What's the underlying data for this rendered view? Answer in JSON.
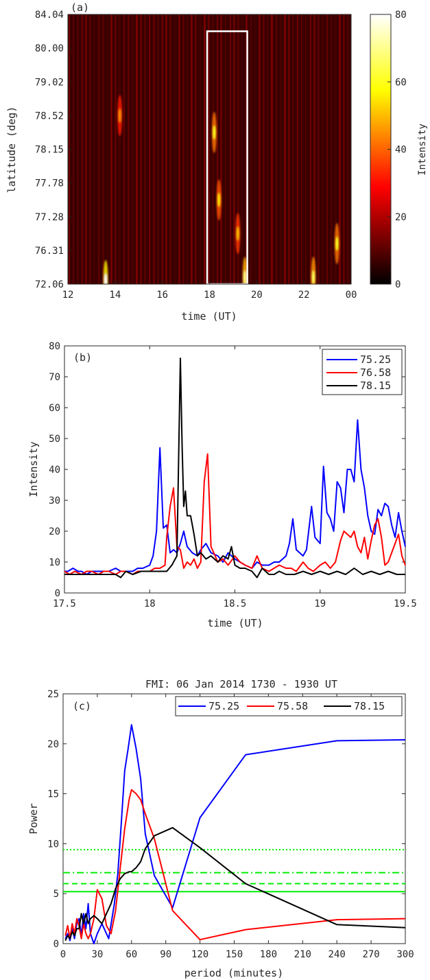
{
  "chart_data": [
    {
      "type": "heatmap",
      "panel_label": "(a)",
      "xlabel": "time (UT)",
      "ylabel": "latitude (deg)",
      "x_ticks": [
        "12",
        "14",
        "16",
        "18",
        "20",
        "22",
        "00"
      ],
      "x_range_hours": [
        12,
        24
      ],
      "y_ticks": [
        "72.06",
        "76.31",
        "77.28",
        "77.78",
        "78.15",
        "78.52",
        "79.02",
        "80.00",
        "84.04"
      ],
      "colorbar_label": "Intensity",
      "colorbar_ticks": [
        "0",
        "20",
        "40",
        "60",
        "80"
      ],
      "colorbar_range": [
        0,
        80
      ],
      "colormap": "hot",
      "highlight_box": {
        "x": [
          17.9,
          19.6
        ],
        "y_tick_index": [
          0,
          7.5
        ],
        "color": "#ffffff"
      },
      "features": [
        {
          "x": 13.6,
          "y_index": 0.1,
          "intensity": 80
        },
        {
          "x": 14.2,
          "y_index": 5.0,
          "intensity": 45
        },
        {
          "x": 18.2,
          "y_index": 4.5,
          "intensity": 60
        },
        {
          "x": 18.4,
          "y_index": 2.5,
          "intensity": 55
        },
        {
          "x": 19.2,
          "y_index": 1.5,
          "intensity": 50
        },
        {
          "x": 19.5,
          "y_index": 0.2,
          "intensity": 70
        },
        {
          "x": 22.4,
          "y_index": 0.2,
          "intensity": 65
        },
        {
          "x": 23.4,
          "y_index": 1.2,
          "intensity": 60
        }
      ]
    },
    {
      "type": "line",
      "panel_label": "(b)",
      "xlabel": "time (UT)",
      "ylabel": "Intensity",
      "x_ticks": [
        "17.5",
        "18",
        "18.5",
        "19",
        "19.5"
      ],
      "xlim": [
        17.5,
        19.5
      ],
      "y_ticks": [
        "0",
        "10",
        "20",
        "30",
        "40",
        "50",
        "60",
        "70",
        "80"
      ],
      "ylim": [
        0,
        80
      ],
      "legend_position": "top-right",
      "series": [
        {
          "name": "75.25",
          "color": "#0000ff",
          "x": [
            17.5,
            17.52,
            17.55,
            17.58,
            17.6,
            17.63,
            17.66,
            17.7,
            17.73,
            17.76,
            17.8,
            17.83,
            17.86,
            17.9,
            17.93,
            17.96,
            18.0,
            18.02,
            18.04,
            18.06,
            18.08,
            18.1,
            18.12,
            18.14,
            18.16,
            18.18,
            18.2,
            18.22,
            18.25,
            18.28,
            18.3,
            18.33,
            18.36,
            18.4,
            18.43,
            18.46,
            18.5,
            18.53,
            18.56,
            18.6,
            18.63,
            18.66,
            18.7,
            18.73,
            18.76,
            18.8,
            18.82,
            18.84,
            18.86,
            18.9,
            18.92,
            18.95,
            18.97,
            19.0,
            19.02,
            19.04,
            19.06,
            19.08,
            19.1,
            19.12,
            19.14,
            19.16,
            19.18,
            19.2,
            19.22,
            19.24,
            19.26,
            19.28,
            19.3,
            19.32,
            19.34,
            19.36,
            19.38,
            19.4,
            19.42,
            19.44,
            19.46,
            19.48,
            19.5
          ],
          "y": [
            7,
            7,
            8,
            7,
            7,
            6,
            7,
            7,
            7,
            7,
            8,
            7,
            7,
            7,
            8,
            8,
            9,
            12,
            20,
            47,
            21,
            22,
            13,
            14,
            13,
            16,
            20,
            15,
            13,
            12,
            14,
            16,
            13,
            12,
            10,
            13,
            11,
            10,
            9,
            8,
            10,
            9,
            9,
            10,
            10,
            12,
            16,
            24,
            14,
            12,
            14,
            28,
            18,
            16,
            41,
            26,
            24,
            20,
            36,
            34,
            26,
            40,
            40,
            36,
            56,
            40,
            34,
            25,
            20,
            19,
            27,
            25,
            29,
            28,
            22,
            18,
            26,
            20,
            15
          ]
        },
        {
          "name": "76.58",
          "color": "#ff0000",
          "x": [
            17.5,
            17.53,
            17.56,
            17.6,
            17.63,
            17.66,
            17.7,
            17.73,
            17.76,
            17.8,
            17.83,
            17.86,
            17.9,
            17.93,
            17.96,
            18.0,
            18.03,
            18.06,
            18.09,
            18.1,
            18.12,
            18.14,
            18.16,
            18.18,
            18.2,
            18.22,
            18.24,
            18.26,
            18.28,
            18.3,
            18.32,
            18.34,
            18.36,
            18.4,
            18.43,
            18.46,
            18.5,
            18.53,
            18.56,
            18.6,
            18.63,
            18.66,
            18.7,
            18.73,
            18.76,
            18.8,
            18.83,
            18.86,
            18.9,
            18.93,
            18.96,
            19.0,
            19.03,
            19.06,
            19.09,
            19.12,
            19.14,
            19.16,
            19.18,
            19.2,
            19.22,
            19.24,
            19.26,
            19.28,
            19.3,
            19.32,
            19.34,
            19.36,
            19.38,
            19.4,
            19.42,
            19.44,
            19.46,
            19.48,
            19.5
          ],
          "y": [
            7,
            6,
            7,
            6,
            7,
            7,
            6,
            7,
            7,
            6,
            7,
            7,
            6,
            7,
            7,
            7,
            8,
            8,
            9,
            18,
            28,
            34,
            15,
            14,
            8,
            10,
            9,
            11,
            8,
            10,
            36,
            45,
            15,
            10,
            11,
            9,
            12,
            10,
            9,
            8,
            12,
            8,
            7,
            8,
            9,
            8,
            8,
            7,
            10,
            8,
            7,
            9,
            10,
            8,
            10,
            17,
            20,
            19,
            18,
            20,
            15,
            13,
            18,
            11,
            17,
            22,
            24,
            18,
            9,
            10,
            13,
            16,
            19,
            12,
            9
          ]
        },
        {
          "name": "78.15",
          "color": "#000000",
          "x": [
            17.5,
            17.55,
            17.6,
            17.65,
            17.7,
            17.75,
            17.8,
            17.83,
            17.86,
            17.9,
            17.95,
            18.0,
            18.03,
            18.06,
            18.1,
            18.13,
            18.16,
            18.18,
            18.19,
            18.2,
            18.21,
            18.22,
            18.24,
            18.26,
            18.28,
            18.3,
            18.33,
            18.36,
            18.4,
            18.43,
            18.46,
            18.48,
            18.5,
            18.53,
            18.56,
            18.6,
            18.63,
            18.66,
            18.7,
            18.73,
            18.76,
            18.8,
            18.85,
            18.9,
            18.95,
            19.0,
            19.05,
            19.1,
            19.15,
            19.2,
            19.25,
            19.3,
            19.35,
            19.4,
            19.45,
            19.5
          ],
          "y": [
            6,
            6,
            6,
            6,
            6,
            6,
            6,
            5,
            7,
            6,
            7,
            7,
            7,
            7,
            7,
            9,
            12,
            76,
            48,
            28,
            33,
            25,
            25,
            19,
            12,
            13,
            11,
            12,
            10,
            12,
            11,
            15,
            9,
            8,
            8,
            7,
            5,
            8,
            6,
            6,
            7,
            6,
            6,
            7,
            6,
            7,
            6,
            7,
            6,
            8,
            6,
            7,
            6,
            7,
            6,
            6
          ]
        }
      ]
    },
    {
      "type": "line",
      "panel_label": "(c)",
      "title": "FMI: 06 Jan 2014 1730 - 1930 UT",
      "xlabel": "period (minutes)",
      "ylabel": "Power",
      "x_ticks": [
        "0",
        "30",
        "60",
        "90",
        "120",
        "150",
        "180",
        "210",
        "240",
        "270",
        "300"
      ],
      "xlim": [
        0,
        300
      ],
      "y_ticks": [
        "0",
        "5",
        "10",
        "15",
        "20",
        "25"
      ],
      "ylim": [
        0,
        25
      ],
      "legend_position": "top-right",
      "series": [
        {
          "name": "75.25",
          "color": "#0000ff",
          "x": [
            2,
            4,
            6,
            8,
            10,
            12,
            14,
            16,
            18,
            20,
            22,
            24,
            27,
            30,
            34,
            40,
            45,
            48,
            51,
            54,
            57,
            60,
            64,
            68,
            72,
            80,
            96,
            120,
            160,
            240,
            300
          ],
          "y": [
            0.5,
            1.0,
            0.3,
            1.5,
            0.5,
            2.0,
            2.5,
            0.8,
            3.0,
            1.5,
            4.0,
            1.0,
            0.0,
            1.0,
            2.0,
            0.5,
            4.0,
            7.0,
            12.0,
            17.3,
            19.5,
            21.9,
            19.5,
            16.5,
            11.0,
            6.8,
            3.6,
            12.6,
            18.9,
            20.3,
            20.4
          ]
        },
        {
          "name": "75.58",
          "color": "#ff0000",
          "x": [
            2,
            4,
            6,
            8,
            10,
            12,
            14,
            16,
            18,
            20,
            22,
            24,
            27,
            30,
            34,
            38,
            42,
            46,
            50,
            54,
            58,
            60,
            64,
            68,
            72,
            80,
            96,
            120,
            160,
            240,
            300
          ],
          "y": [
            0.8,
            1.8,
            0.5,
            2.0,
            1.0,
            2.5,
            1.8,
            0.5,
            2.0,
            1.0,
            0.5,
            1.0,
            2.5,
            5.4,
            4.5,
            1.8,
            1.0,
            3.3,
            7.5,
            11.5,
            14.5,
            15.4,
            15.0,
            14.4,
            13.0,
            10.5,
            3.3,
            0.4,
            1.4,
            2.4,
            2.5
          ]
        },
        {
          "name": "78.15",
          "color": "#000000",
          "x": [
            2,
            4,
            6,
            8,
            10,
            12,
            14,
            16,
            18,
            20,
            22,
            24,
            27,
            30,
            34,
            38,
            42,
            46,
            50,
            54,
            58,
            60,
            64,
            68,
            72,
            80,
            96,
            120,
            160,
            240,
            300
          ],
          "y": [
            0.3,
            0.8,
            0.5,
            1.2,
            0.8,
            1.5,
            1.5,
            3.0,
            2.0,
            3.0,
            2.0,
            2.5,
            2.8,
            2.5,
            2.0,
            3.0,
            4.0,
            5.5,
            6.5,
            7.0,
            7.2,
            7.2,
            7.6,
            8.2,
            9.5,
            10.8,
            11.6,
            9.6,
            6.0,
            1.9,
            1.6
          ]
        }
      ],
      "threshold_lines": [
        {
          "y": 9.4,
          "style": "dotted",
          "color": "#00ee00"
        },
        {
          "y": 7.1,
          "style": "dashdot",
          "color": "#00ee00"
        },
        {
          "y": 6.0,
          "style": "dashed",
          "color": "#00ee00"
        },
        {
          "y": 5.2,
          "style": "solid",
          "color": "#00ee00"
        }
      ]
    }
  ]
}
